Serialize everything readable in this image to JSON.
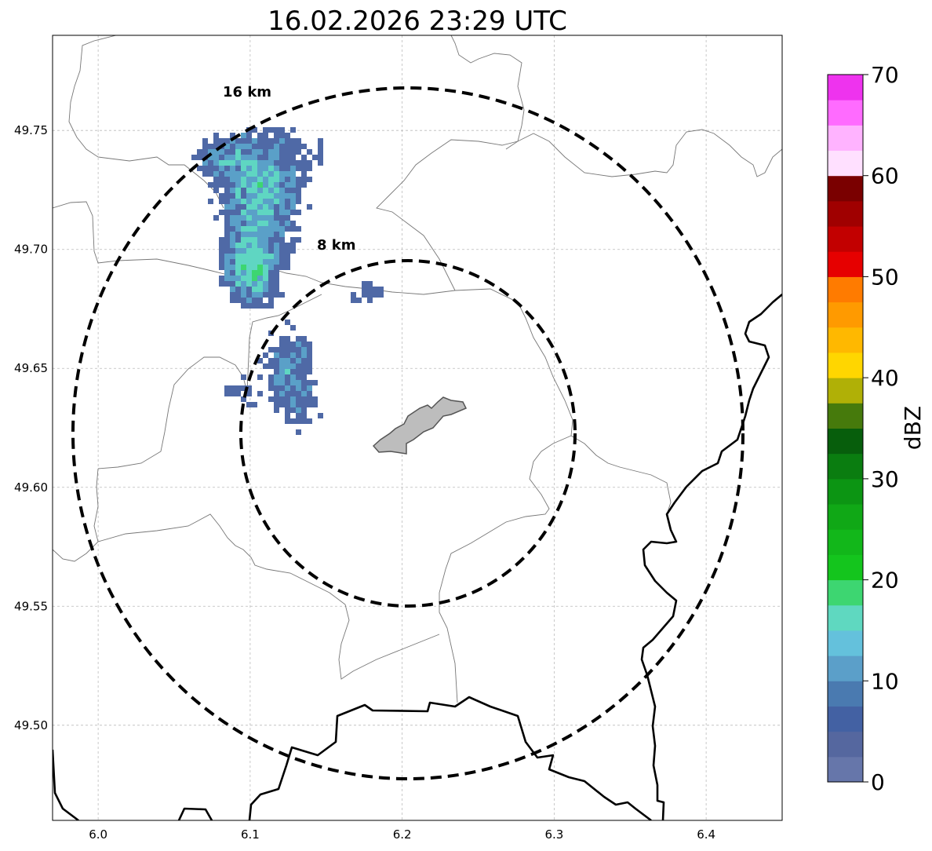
{
  "title": "16.02.2026 23:29 UTC",
  "map": {
    "x_ticks": [
      "6.0",
      "6.1",
      "6.2",
      "6.3",
      "6.4"
    ],
    "x_tick_values": [
      6.0,
      6.1,
      6.2,
      6.3,
      6.4
    ],
    "y_ticks": [
      "49.75",
      "49.70",
      "49.65",
      "49.60",
      "49.55",
      "49.50"
    ],
    "y_tick_values": [
      49.75,
      49.7,
      49.65,
      49.6,
      49.55,
      49.5
    ],
    "lon_range": [
      5.97,
      6.45
    ],
    "lat_range": [
      49.46,
      49.79
    ],
    "radar_center": {
      "lon": 6.204,
      "lat": 49.623
    },
    "range_rings": [
      {
        "label": "8 km",
        "radius_km": 8
      },
      {
        "label": "16 km",
        "radius_km": 16
      }
    ],
    "grid": true
  },
  "colorbar": {
    "unit": "dBZ",
    "tick_labels": [
      "0",
      "10",
      "20",
      "30",
      "40",
      "50",
      "60",
      "70"
    ],
    "range": [
      0,
      70
    ],
    "step": 2.5,
    "colors": [
      "#6676aa",
      "#55679f",
      "#4361a3",
      "#4a7ab0",
      "#5b9fc9",
      "#64c1dc",
      "#5fd8c0",
      "#3dd671",
      "#14c51d",
      "#12b71a",
      "#10a816",
      "#0c9513",
      "#0a7d10",
      "#075e0c",
      "#467a0c",
      "#b0b006",
      "#ffd600",
      "#ffb800",
      "#ff9a00",
      "#ff7b00",
      "#e60000",
      "#c20000",
      "#a00000",
      "#7a0000",
      "#ffe0ff",
      "#ffb3ff",
      "#ff6bff",
      "#ee33ee"
    ]
  },
  "radar_echo": {
    "description_colors": {
      "low": "#4f69a6",
      "mid": "#5aa0c8",
      "high": "#5fd6c2",
      "core": "#3dd671"
    }
  }
}
